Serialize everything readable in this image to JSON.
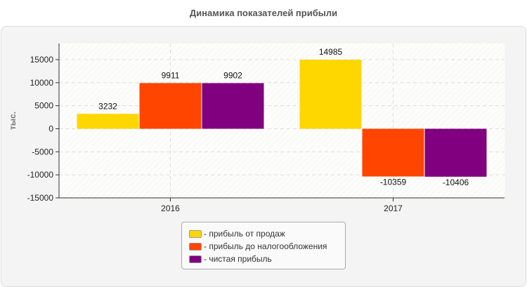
{
  "chart_data": {
    "type": "bar",
    "title": "Динамика показателей прибыли",
    "ylabel": "тыс.",
    "xlabel": "",
    "categories": [
      "2016",
      "2017"
    ],
    "series": [
      {
        "name": "прибыль от продаж",
        "values": [
          3232,
          14985
        ],
        "color": "#FFD700"
      },
      {
        "name": "прибыль до налогообложения",
        "values": [
          9911,
          -10359
        ],
        "color": "#FF4500"
      },
      {
        "name": "чистая прибыль",
        "values": [
          9902,
          -10406
        ],
        "color": "#800080"
      }
    ],
    "ylim": [
      -15000,
      18500
    ],
    "yticks": [
      15000,
      10000,
      5000,
      0,
      -5000,
      -10000,
      -15000
    ],
    "grid": true,
    "legend_position": "bottom",
    "legend_labels": [
      "- прибыль от продаж",
      "- прибыль до налогообложения",
      "- чистая прибыль"
    ]
  }
}
